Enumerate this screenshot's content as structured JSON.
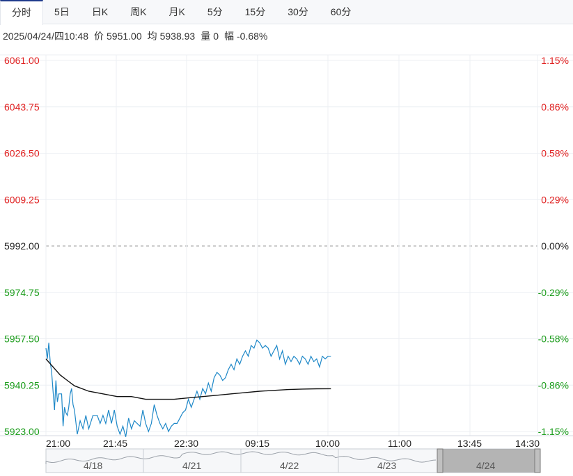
{
  "tabs": [
    "分时",
    "5日",
    "日K",
    "周K",
    "月K",
    "5分",
    "15分",
    "30分",
    "60分"
  ],
  "active_tab": 0,
  "info": {
    "datetime": "2025/04/24/四10:48",
    "price_label": "价",
    "price": "5951.00",
    "avg_label": "均",
    "avg": "5938.93",
    "vol_label": "量",
    "vol": "0",
    "chg_label": "幅",
    "chg": "-0.68%"
  },
  "colors": {
    "up": "#e02020",
    "down": "#1a9c1a",
    "neutral": "#222222",
    "price_line": "#1e88c8",
    "avg_line": "#111111"
  },
  "chart_data": {
    "type": "line",
    "ylim": [
      5923.0,
      6061.0
    ],
    "prev_close": 5992.0,
    "y_ticks": [
      "6061.00",
      "6043.75",
      "6026.50",
      "6009.25",
      "5992.00",
      "5974.75",
      "5957.50",
      "5940.25",
      "5923.00"
    ],
    "pct_ticks": [
      "1.15%",
      "0.86%",
      "0.58%",
      "0.29%",
      "0.00%",
      "-0.29%",
      "-0.58%",
      "-0.86%",
      "-1.15%"
    ],
    "x_ticks": [
      "21:00",
      "21:45",
      "22:30",
      "09:15",
      "10:00",
      "11:00",
      "13:45",
      "14:30"
    ],
    "sessions_total_minutes": 345,
    "series": [
      {
        "key": "price",
        "points": [
          [
            0,
            5954
          ],
          [
            1,
            5950
          ],
          [
            2,
            5956
          ],
          [
            3,
            5949
          ],
          [
            4,
            5945
          ],
          [
            5,
            5938
          ],
          [
            6,
            5931
          ],
          [
            7,
            5942
          ],
          [
            8,
            5934
          ],
          [
            9,
            5937
          ],
          [
            10,
            5937
          ],
          [
            11,
            5937
          ],
          [
            12,
            5925
          ],
          [
            13,
            5932
          ],
          [
            14,
            5930
          ],
          [
            15,
            5929
          ],
          [
            16,
            5932
          ],
          [
            17,
            5937
          ],
          [
            18,
            5939
          ],
          [
            19,
            5933
          ],
          [
            20,
            5931
          ],
          [
            22,
            5922
          ],
          [
            24,
            5927
          ],
          [
            26,
            5924
          ],
          [
            28,
            5929
          ],
          [
            30,
            5924
          ],
          [
            33,
            5929
          ],
          [
            36,
            5929
          ],
          [
            38,
            5926
          ],
          [
            40,
            5929
          ],
          [
            42,
            5926
          ],
          [
            44,
            5931
          ],
          [
            46,
            5926
          ],
          [
            48,
            5931
          ],
          [
            50,
            5925
          ],
          [
            52,
            5922
          ],
          [
            54,
            5925
          ],
          [
            56,
            5921
          ],
          [
            58,
            5928
          ],
          [
            60,
            5924
          ],
          [
            62,
            5927
          ],
          [
            64,
            5926
          ],
          [
            66,
            5925
          ],
          [
            68,
            5931
          ],
          [
            70,
            5926
          ],
          [
            72,
            5923
          ],
          [
            74,
            5926
          ],
          [
            76,
            5933
          ],
          [
            78,
            5929
          ],
          [
            80,
            5926
          ],
          [
            82,
            5924
          ],
          [
            84,
            5926
          ],
          [
            86,
            5923
          ],
          [
            88,
            5925
          ],
          [
            90,
            5926
          ],
          [
            92,
            5926
          ],
          [
            94,
            5928
          ],
          [
            96,
            5930
          ],
          [
            98,
            5931
          ],
          [
            100,
            5935
          ],
          [
            102,
            5932
          ],
          [
            104,
            5935
          ],
          [
            106,
            5938
          ],
          [
            108,
            5935
          ],
          [
            110,
            5939
          ],
          [
            112,
            5937
          ],
          [
            114,
            5941
          ],
          [
            116,
            5938
          ],
          [
            118,
            5943
          ],
          [
            120,
            5945
          ],
          [
            122,
            5944
          ],
          [
            124,
            5942
          ],
          [
            126,
            5943
          ],
          [
            128,
            5946
          ],
          [
            130,
            5948
          ],
          [
            132,
            5946
          ],
          [
            134,
            5950
          ],
          [
            136,
            5948
          ],
          [
            138,
            5951
          ],
          [
            140,
            5953
          ],
          [
            142,
            5951
          ],
          [
            144,
            5955
          ],
          [
            146,
            5954
          ],
          [
            148,
            5957
          ],
          [
            150,
            5956
          ],
          [
            152,
            5954
          ],
          [
            154,
            5955
          ],
          [
            156,
            5954
          ],
          [
            158,
            5951
          ],
          [
            160,
            5953
          ],
          [
            162,
            5955
          ],
          [
            164,
            5950
          ],
          [
            166,
            5953
          ],
          [
            168,
            5948
          ],
          [
            170,
            5951
          ],
          [
            172,
            5949
          ],
          [
            174,
            5951
          ],
          [
            176,
            5950
          ],
          [
            178,
            5948
          ],
          [
            180,
            5951
          ],
          [
            182,
            5950
          ],
          [
            184,
            5948
          ],
          [
            186,
            5951
          ],
          [
            188,
            5949
          ],
          [
            190,
            5950
          ],
          [
            192,
            5947
          ],
          [
            194,
            5951
          ],
          [
            196,
            5950
          ],
          [
            198,
            5951
          ],
          [
            200,
            5951
          ]
        ]
      },
      {
        "key": "avg",
        "points": [
          [
            0,
            5950
          ],
          [
            5,
            5947
          ],
          [
            10,
            5944
          ],
          [
            15,
            5942
          ],
          [
            20,
            5940
          ],
          [
            30,
            5938
          ],
          [
            40,
            5937
          ],
          [
            50,
            5936
          ],
          [
            60,
            5936
          ],
          [
            70,
            5935
          ],
          [
            80,
            5935
          ],
          [
            90,
            5935
          ],
          [
            100,
            5935.5
          ],
          [
            110,
            5936
          ],
          [
            120,
            5936.5
          ],
          [
            130,
            5937
          ],
          [
            140,
            5937.5
          ],
          [
            150,
            5938
          ],
          [
            160,
            5938.3
          ],
          [
            170,
            5938.6
          ],
          [
            180,
            5938.8
          ],
          [
            190,
            5938.9
          ],
          [
            200,
            5938.93
          ]
        ]
      }
    ]
  },
  "navigator": {
    "days": [
      "4/18",
      "4/21",
      "4/22",
      "4/23",
      "4/24"
    ]
  }
}
